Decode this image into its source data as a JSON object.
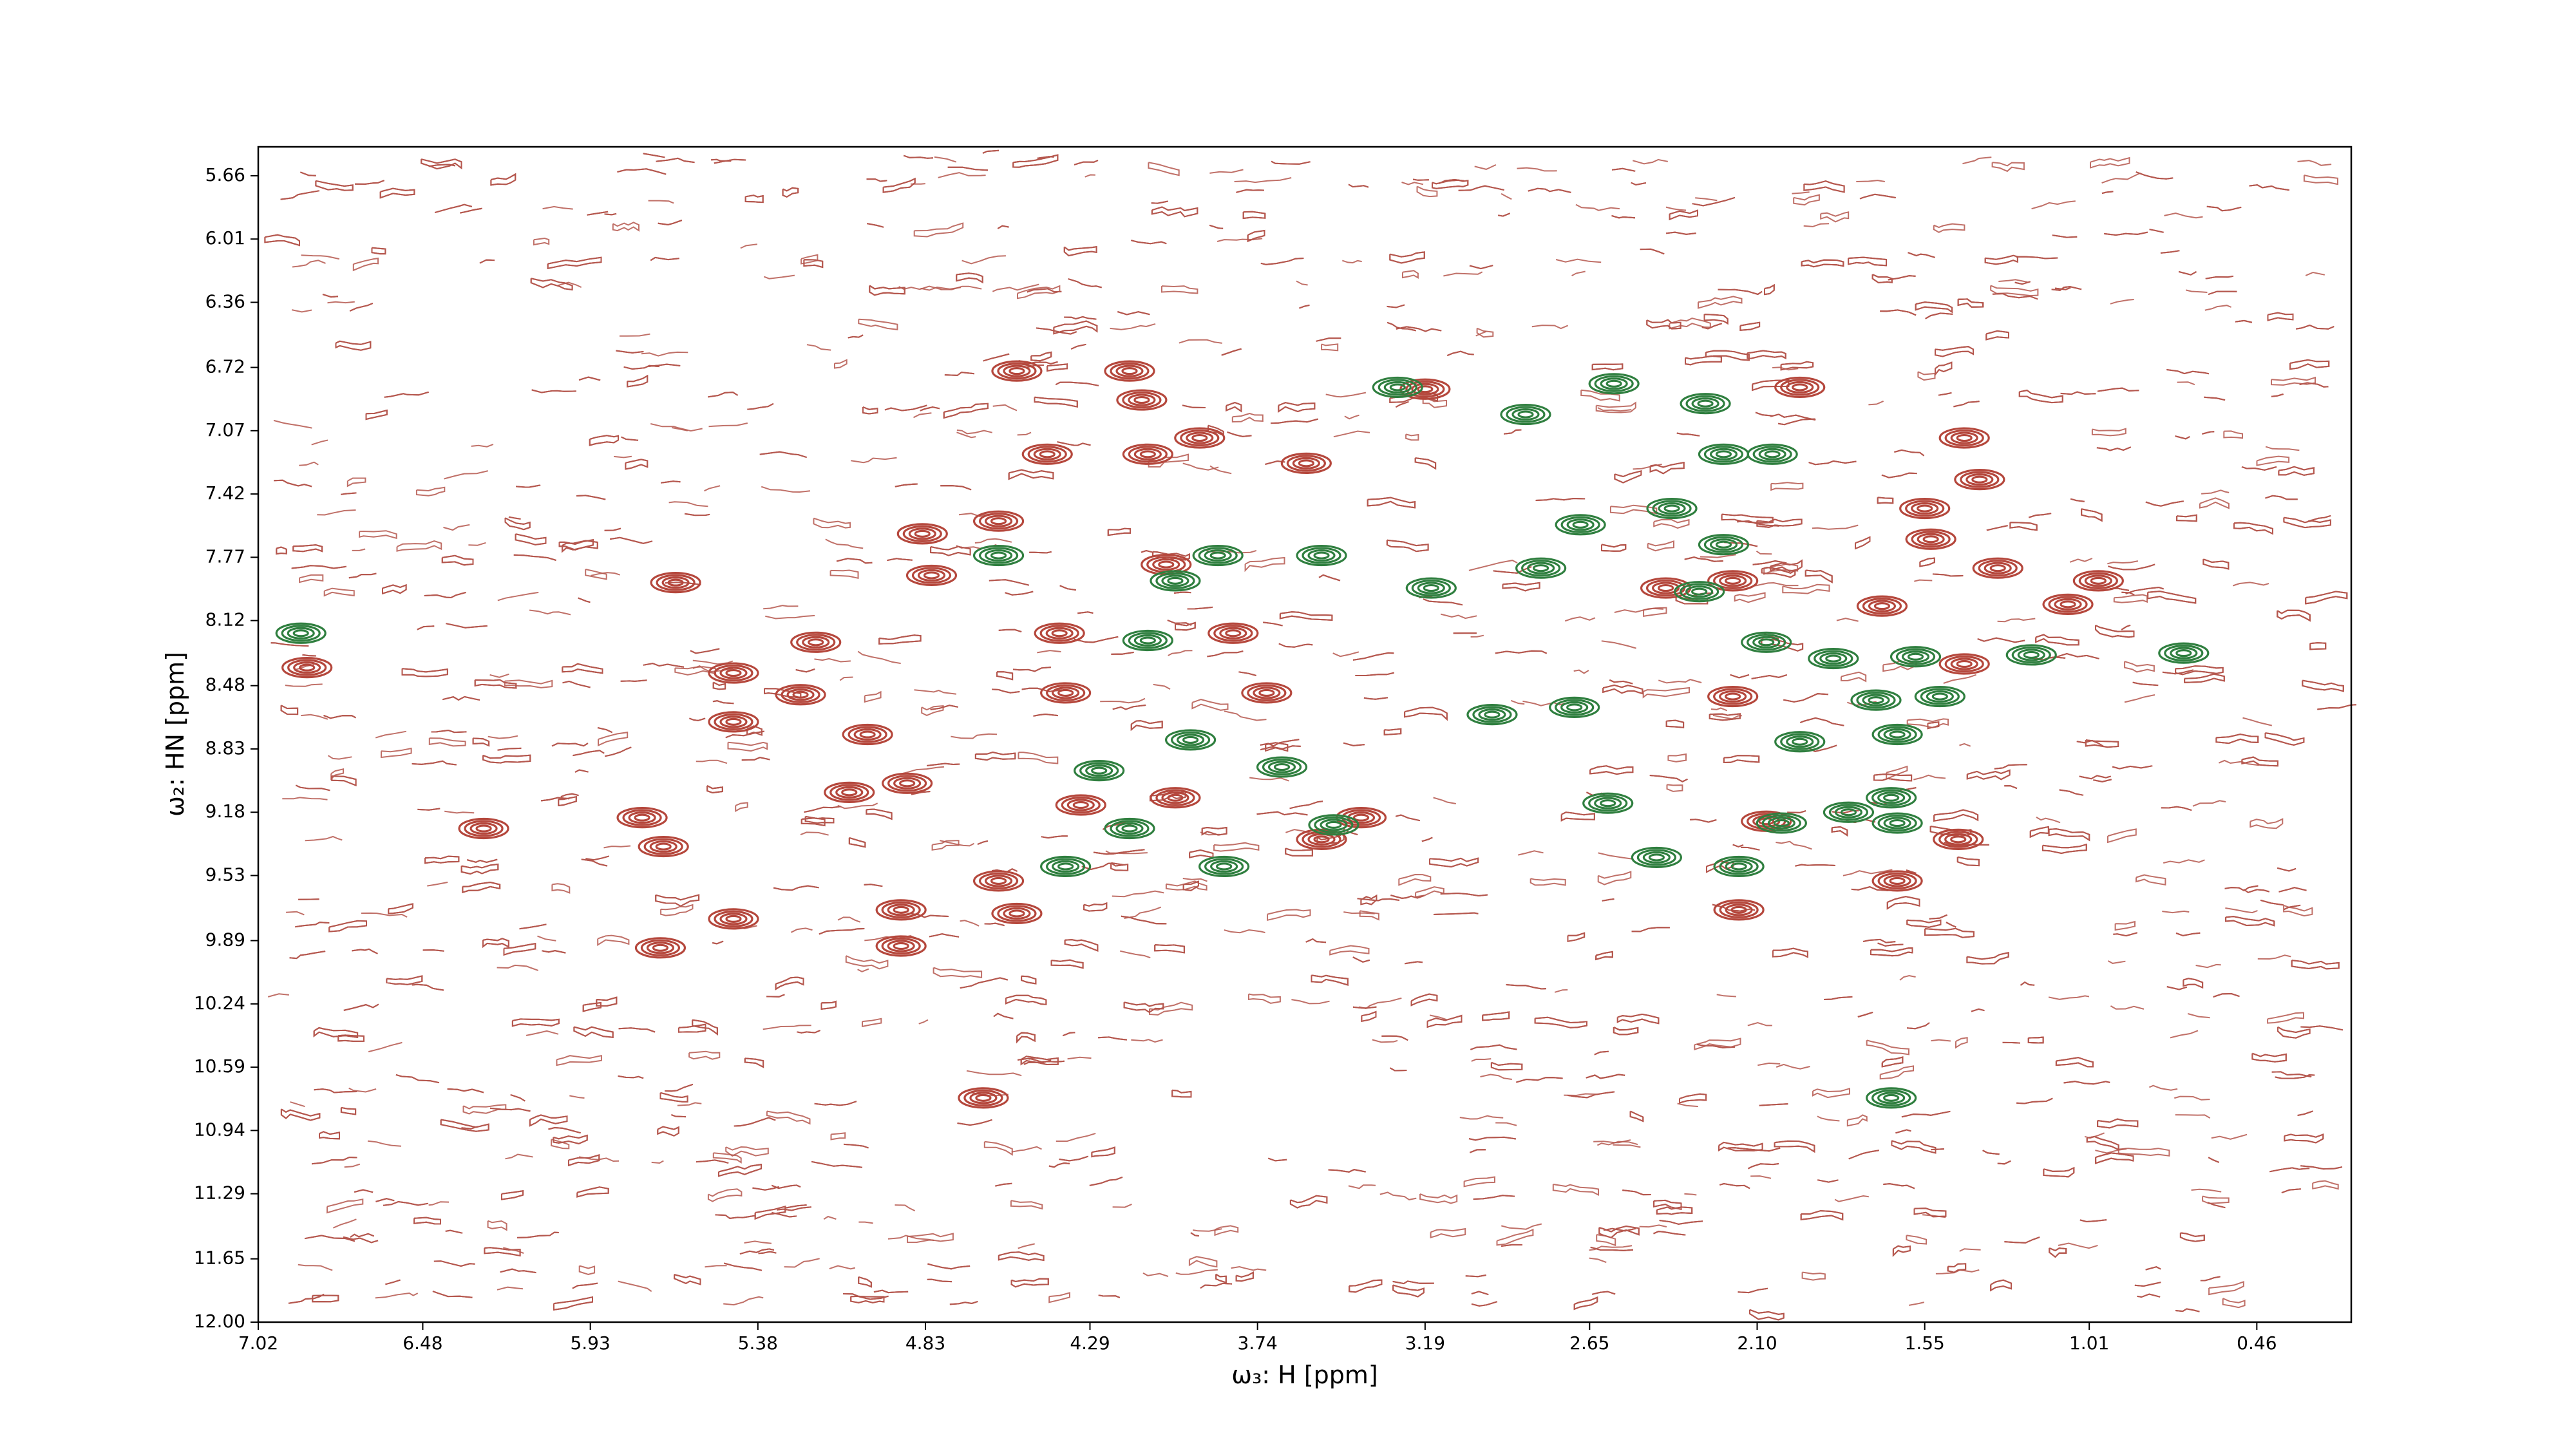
{
  "chart_data": {
    "type": "contour",
    "xlabel": "ω₃: H [ppm]",
    "ylabel": "ω₂: HN [ppm]",
    "xlim": [
      7.02,
      0.15
    ],
    "ylim": [
      12.0,
      5.5
    ],
    "xticks": [
      7.02,
      6.48,
      5.93,
      5.38,
      4.83,
      4.29,
      3.74,
      3.19,
      2.65,
      {
        "value": 2.1,
        "label": "2.10"
      },
      1.55,
      1.01,
      0.46
    ],
    "yticks": [
      5.66,
      6.01,
      6.36,
      6.72,
      7.07,
      7.42,
      7.77,
      8.12,
      8.48,
      8.83,
      9.18,
      9.53,
      9.89,
      10.24,
      10.59,
      10.94,
      11.29,
      11.65,
      {
        "value": 12,
        "label": "12.00"
      }
    ],
    "noise_color": "#b5574d",
    "series": [
      {
        "color": "#b5473c",
        "x": [
          6.86,
          6.28,
          5.76,
          5.69,
          5.7,
          5.65,
          5.46,
          5.46,
          5.46,
          5.24,
          5.19,
          5.02,
          5.08,
          4.89,
          4.91,
          4.91,
          4.84,
          4.81,
          4.59,
          4.53,
          4.59,
          4.53,
          4.43,
          4.39,
          4.37,
          4.32,
          4.16,
          4.12,
          4.1,
          4.04,
          4.01,
          3.93,
          3.82,
          3.71,
          3.58,
          3.53,
          3.4,
          3.19,
          1.96,
          2.18,
          2.4,
          1.42,
          1.37,
          1.31,
          1.55,
          1.53,
          0.98,
          1.08,
          1.42,
          1.64,
          1.44,
          2.16,
          2.18,
          4.64,
          2.07,
          1.69
        ],
        "values": [
          8.38,
          9.27,
          9.21,
          9.37,
          9.93,
          7.91,
          8.41,
          8.68,
          9.77,
          8.53,
          8.24,
          8.75,
          9.07,
          9.02,
          9.72,
          9.92,
          7.64,
          7.87,
          7.57,
          6.74,
          9.56,
          9.74,
          7.2,
          8.19,
          8.52,
          9.14,
          6.74,
          6.9,
          7.2,
          7.81,
          9.1,
          7.11,
          8.19,
          8.52,
          7.25,
          9.33,
          9.21,
          6.84,
          6.83,
          7.9,
          7.94,
          7.11,
          7.34,
          7.83,
          7.5,
          7.67,
          7.9,
          8.03,
          8.36,
          9.56,
          9.33,
          9.72,
          8.54,
          10.76,
          9.23,
          8.04
        ]
      },
      {
        "color": "#2f7f3f",
        "x": [
          6.88,
          4.59,
          4.01,
          3.87,
          4.1,
          3.53,
          3.96,
          3.66,
          4.26,
          4.16,
          4.37,
          3.85,
          3.49,
          3.28,
          2.86,
          2.68,
          2.81,
          3.17,
          2.97,
          2.7,
          2.57,
          2.27,
          2.21,
          2.05,
          2.38,
          2.21,
          2.29,
          2.07,
          1.85,
          1.58,
          1.71,
          1.64,
          1.96,
          2.02,
          1.8,
          1.66,
          1.64,
          1.5,
          1.2,
          0.7,
          1.66,
          2.43,
          2.59,
          2.16
        ],
        "values": [
          8.19,
          7.76,
          7.9,
          7.76,
          8.23,
          7.76,
          8.78,
          8.93,
          8.95,
          9.27,
          9.48,
          9.48,
          9.25,
          6.83,
          6.98,
          7.59,
          7.83,
          7.94,
          8.64,
          8.6,
          6.81,
          6.92,
          7.2,
          7.2,
          7.5,
          7.7,
          7.96,
          8.24,
          8.33,
          8.32,
          8.56,
          8.75,
          8.79,
          9.24,
          9.18,
          9.1,
          9.24,
          8.54,
          8.31,
          8.3,
          10.76,
          9.43,
          9.13,
          9.48
        ]
      }
    ]
  }
}
